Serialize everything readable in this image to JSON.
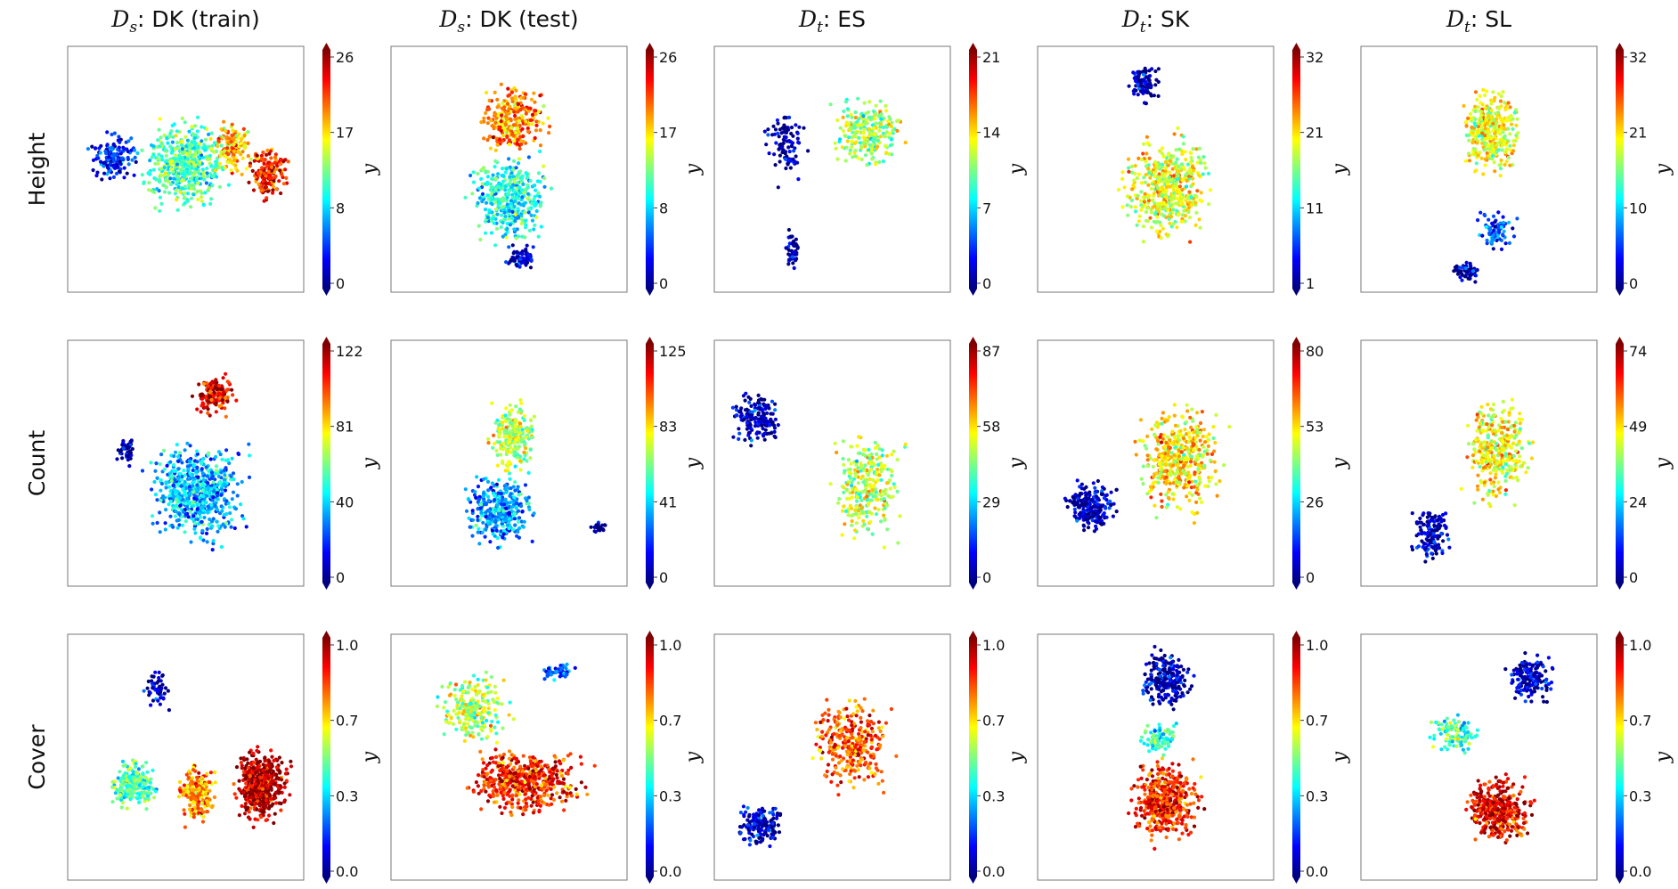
{
  "figure": {
    "columns": [
      {
        "prefix": "D",
        "sub": "s",
        "label": ": DK (train)"
      },
      {
        "prefix": "D",
        "sub": "s",
        "label": ": DK (test)"
      },
      {
        "prefix": "D",
        "sub": "t",
        "label": ": ES"
      },
      {
        "prefix": "D",
        "sub": "t",
        "label": ": SK"
      },
      {
        "prefix": "D",
        "sub": "t",
        "label": ": SL"
      }
    ],
    "rows": [
      "Height",
      "Count",
      "Cover"
    ],
    "colorbar_label": "y",
    "colormap": [
      "#00007f",
      "#0000ff",
      "#007fff",
      "#00ffff",
      "#7fff7f",
      "#ffff00",
      "#ff7f00",
      "#ff0000",
      "#7f0000"
    ]
  },
  "chart_data": [
    {
      "type": "scatter",
      "row": "Height",
      "column": "Ds: DK (train)",
      "colorbar_ticks": [
        "26",
        "17",
        "8",
        "0"
      ],
      "color_range": [
        0,
        26
      ]
    },
    {
      "type": "scatter",
      "row": "Height",
      "column": "Ds: DK (test)",
      "colorbar_ticks": [
        "26",
        "17",
        "8",
        "0"
      ],
      "color_range": [
        0,
        26
      ]
    },
    {
      "type": "scatter",
      "row": "Height",
      "column": "Dt: ES",
      "colorbar_ticks": [
        "21",
        "14",
        "7",
        "0"
      ],
      "color_range": [
        0,
        21
      ]
    },
    {
      "type": "scatter",
      "row": "Height",
      "column": "Dt: SK",
      "colorbar_ticks": [
        "32",
        "21",
        "11",
        "1"
      ],
      "color_range": [
        1,
        32
      ]
    },
    {
      "type": "scatter",
      "row": "Height",
      "column": "Dt: SL",
      "colorbar_ticks": [
        "32",
        "21",
        "10",
        "0"
      ],
      "color_range": [
        0,
        32
      ]
    },
    {
      "type": "scatter",
      "row": "Count",
      "column": "Ds: DK (train)",
      "colorbar_ticks": [
        "122",
        "81",
        "40",
        "0"
      ],
      "color_range": [
        0,
        122
      ]
    },
    {
      "type": "scatter",
      "row": "Count",
      "column": "Ds: DK (test)",
      "colorbar_ticks": [
        "125",
        "83",
        "41",
        "0"
      ],
      "color_range": [
        0,
        125
      ]
    },
    {
      "type": "scatter",
      "row": "Count",
      "column": "Dt: ES",
      "colorbar_ticks": [
        "87",
        "58",
        "29",
        "0"
      ],
      "color_range": [
        0,
        87
      ]
    },
    {
      "type": "scatter",
      "row": "Count",
      "column": "Dt: SK",
      "colorbar_ticks": [
        "80",
        "53",
        "26",
        "0"
      ],
      "color_range": [
        0,
        80
      ]
    },
    {
      "type": "scatter",
      "row": "Count",
      "column": "Dt: SL",
      "colorbar_ticks": [
        "74",
        "49",
        "24",
        "0"
      ],
      "color_range": [
        0,
        74
      ]
    },
    {
      "type": "scatter",
      "row": "Cover",
      "column": "Ds: DK (train)",
      "colorbar_ticks": [
        "1.0",
        "0.7",
        "0.3",
        "0.0"
      ],
      "color_range": [
        0.0,
        1.0
      ]
    },
    {
      "type": "scatter",
      "row": "Cover",
      "column": "Ds: DK (test)",
      "colorbar_ticks": [
        "1.0",
        "0.7",
        "0.3",
        "0.0"
      ],
      "color_range": [
        0.0,
        1.0
      ]
    },
    {
      "type": "scatter",
      "row": "Cover",
      "column": "Dt: ES",
      "colorbar_ticks": [
        "1.0",
        "0.7",
        "0.3",
        "0.0"
      ],
      "color_range": [
        0.0,
        1.0
      ]
    },
    {
      "type": "scatter",
      "row": "Cover",
      "column": "Dt: SK",
      "colorbar_ticks": [
        "1.0",
        "0.7",
        "0.3",
        "0.0"
      ],
      "color_range": [
        0.0,
        1.0
      ]
    },
    {
      "type": "scatter",
      "row": "Cover",
      "column": "Dt: SL",
      "colorbar_ticks": [
        "1.0",
        "0.7",
        "0.3",
        "0.0"
      ],
      "color_range": [
        0.0,
        1.0
      ]
    }
  ]
}
